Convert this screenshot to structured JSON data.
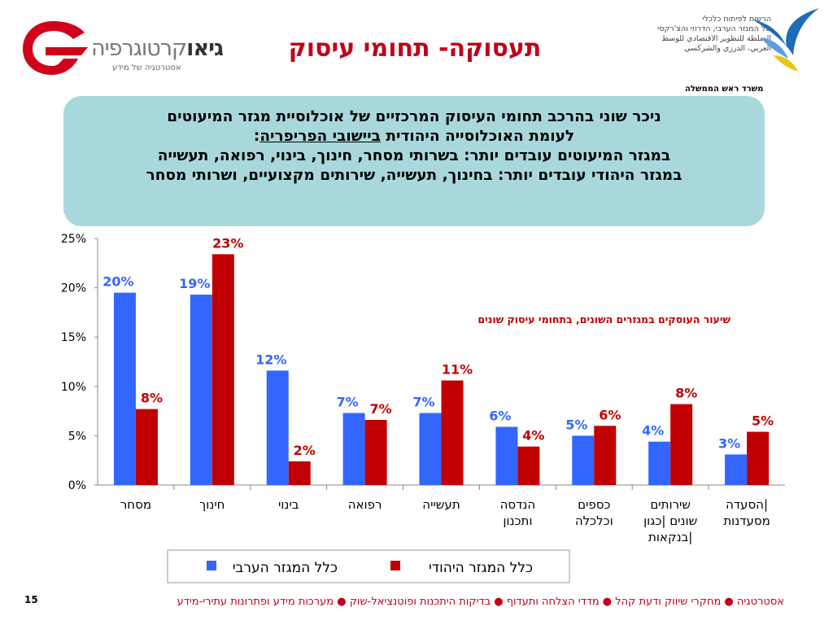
{
  "header": {
    "logo_left": {
      "brand_bold": "גיאו",
      "brand_light": "קרטוגרפיה",
      "tagline": "אסטרטגיה של מידע"
    },
    "title": "תעסוקה- תחומי עיסוק",
    "logo_right": {
      "authority_lines": [
        "הרשות לפיתוח כלכלי",
        "של המגזר הערבי, הדרוזי והצ'רקסי",
        "السلطة للتطوير الاقتصادي للوسط",
        "العربي، الدرزي والشركسي"
      ],
      "office": "משרד ראש הממשלה"
    }
  },
  "summary": {
    "line1": "ניכר שוני בהרכב תחומי העיסוק המרכזיים של אוכלוסיית מגזר המיעוטים",
    "line2_prefix": "לעומת האוכלוסייה היהודית ",
    "line2_underlined": "ביישובי הפריפריה",
    "line2_suffix": ":",
    "line3": "במגזר המיעוטים עובדים יותר: בשרותי מסחר, חינוך, בינוי, רפואה, תעשייה",
    "line4": "במגזר היהודי עובדים יותר: בחינוך, תעשייה, שירותים מקצועיים, ושרותי מסחר"
  },
  "chart_data": {
    "type": "bar",
    "subtitle": "שיעור העוסקים במגזרים השונים,  בתחומי עיסוק שונים",
    "categories": [
      [
        "מסחר"
      ],
      [
        "חינוך"
      ],
      [
        "בינוי"
      ],
      [
        "רפואה"
      ],
      [
        "תעשייה"
      ],
      [
        "הנדסה",
        "ותכנון"
      ],
      [
        "כספים",
        "וכלכלה"
      ],
      [
        "שירותים",
        "שונים |כגון",
        "בנקאות|"
      ],
      [
        "הסעדה|",
        "מסעדנות"
      ]
    ],
    "series": [
      {
        "name": "כלל המגזר הערבי",
        "color": "#3366ff",
        "values": [
          19.5,
          19.3,
          11.6,
          7.3,
          7.3,
          5.9,
          5.0,
          4.4,
          3.1
        ],
        "labels": [
          "20%",
          "19%",
          "12%",
          "7%",
          "7%",
          "6%",
          "5%",
          "4%",
          "3%"
        ]
      },
      {
        "name": "כלל המגזר היהודי",
        "color": "#c00000",
        "values": [
          7.7,
          23.4,
          2.4,
          6.6,
          10.6,
          3.9,
          6.0,
          8.2,
          5.4
        ],
        "labels": [
          "8%",
          "23%",
          "2%",
          "7%",
          "11%",
          "4%",
          "6%",
          "8%",
          "5%"
        ]
      }
    ],
    "yticks": [
      "0%",
      "5%",
      "10%",
      "15%",
      "20%",
      "25%"
    ],
    "ylim": [
      0,
      25
    ],
    "legend": "bottom"
  },
  "footer": {
    "page_number": "15",
    "text": "אסטרטגיה ● מחקרי שיווק ודעת קהל ● מדדי הצלחה ותעדוף ● בדיקות היתכנות ופוטנציאל-שוק ● מערכות מידע ופתרונות עתירי-מידע"
  }
}
